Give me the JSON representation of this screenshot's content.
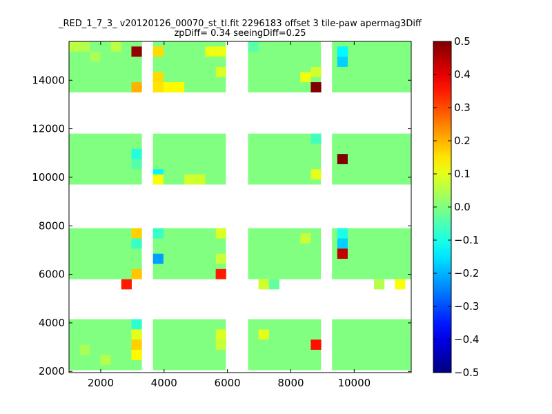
{
  "chart_data": {
    "type": "heatmap",
    "title_line1": "_RED_1_7_3_ v20120126_00070_st_tl.fit 2296183 offset 3 tile-paw apermag3Diff",
    "title_line2": "zpDiff= 0.34 seeingDiff=0.25",
    "xlim": [
      1000,
      11800
    ],
    "ylim": [
      1950,
      15600
    ],
    "x_ticks": [
      2000,
      4000,
      6000,
      8000,
      10000
    ],
    "x_tick_labels": [
      "2000",
      "4000",
      "6000",
      "8000",
      "10000"
    ],
    "y_ticks": [
      2000,
      4000,
      6000,
      8000,
      10000,
      12000,
      14000
    ],
    "y_tick_labels": [
      "2000",
      "4000",
      "6000",
      "8000",
      "10000",
      "12000",
      "14000"
    ],
    "colormap": "jet",
    "color_range": [
      -0.5,
      0.5
    ],
    "colorbar_ticks": [
      0.5,
      0.4,
      0.3,
      0.2,
      0.1,
      0.0,
      -0.1,
      -0.2,
      -0.3,
      -0.4,
      -0.5
    ],
    "colorbar_tick_labels": [
      "0.5",
      "0.4",
      "0.3",
      "0.2",
      "0.1",
      "0.0",
      "−0.1",
      "−0.2",
      "−0.3",
      "−0.4",
      "−0.5"
    ],
    "grid": false,
    "cell_size": [
      330,
      420
    ],
    "detector_columns": [
      {
        "x_start": 1000,
        "x_end": 3300
      },
      {
        "x_start": 3650,
        "x_end": 5950
      },
      {
        "x_start": 6650,
        "x_end": 8950
      },
      {
        "x_start": 9300,
        "x_end": 11800
      }
    ],
    "detector_rows": [
      {
        "y_start": 2050,
        "y_end": 4150
      },
      {
        "y_start": 5800,
        "y_end": 7900
      },
      {
        "y_start": 9700,
        "y_end": 11800
      },
      {
        "y_start": 13500,
        "y_end": 15600
      }
    ],
    "background_value": 0.0,
    "cells": [
      {
        "x": 1165,
        "y": 15390,
        "value": 0.06
      },
      {
        "x": 1495,
        "y": 15390,
        "value": 0.05
      },
      {
        "x": 1825,
        "y": 14970,
        "value": 0.04
      },
      {
        "x": 2485,
        "y": 15390,
        "value": 0.06
      },
      {
        "x": 3135,
        "y": 15180,
        "value": 0.48
      },
      {
        "x": 3135,
        "y": 13710,
        "value": 0.2
      },
      {
        "x": 3815,
        "y": 15180,
        "value": 0.16
      },
      {
        "x": 3815,
        "y": 14130,
        "value": 0.16
      },
      {
        "x": 3815,
        "y": 13710,
        "value": 0.15
      },
      {
        "x": 4145,
        "y": 13710,
        "value": 0.13
      },
      {
        "x": 4475,
        "y": 13710,
        "value": 0.13
      },
      {
        "x": 5465,
        "y": 15180,
        "value": 0.11
      },
      {
        "x": 5795,
        "y": 15180,
        "value": 0.11
      },
      {
        "x": 5795,
        "y": 14340,
        "value": 0.09
      },
      {
        "x": 6815,
        "y": 15390,
        "value": -0.04
      },
      {
        "x": 8465,
        "y": 14130,
        "value": 0.11
      },
      {
        "x": 8795,
        "y": 14340,
        "value": 0.08
      },
      {
        "x": 8795,
        "y": 13710,
        "value": 0.5
      },
      {
        "x": 9630,
        "y": 15180,
        "value": -0.13
      },
      {
        "x": 9630,
        "y": 14760,
        "value": -0.17
      },
      {
        "x": 3135,
        "y": 10960,
        "value": -0.09
      },
      {
        "x": 3135,
        "y": 10540,
        "value": -0.04
      },
      {
        "x": 3815,
        "y": 10120,
        "value": -0.13
      },
      {
        "x": 3815,
        "y": 9910,
        "value": 0.12
      },
      {
        "x": 4805,
        "y": 9910,
        "value": 0.08
      },
      {
        "x": 5135,
        "y": 9910,
        "value": 0.08
      },
      {
        "x": 8795,
        "y": 10120,
        "value": 0.1
      },
      {
        "x": 8795,
        "y": 11590,
        "value": -0.06
      },
      {
        "x": 9630,
        "y": 10750,
        "value": 0.5
      },
      {
        "x": 3135,
        "y": 7690,
        "value": 0.17
      },
      {
        "x": 3135,
        "y": 7270,
        "value": -0.07
      },
      {
        "x": 3135,
        "y": 6010,
        "value": 0.18
      },
      {
        "x": 3815,
        "y": 7690,
        "value": -0.07
      },
      {
        "x": 3815,
        "y": 6640,
        "value": -0.22
      },
      {
        "x": 5795,
        "y": 7690,
        "value": 0.09
      },
      {
        "x": 5795,
        "y": 6640,
        "value": 0.07
      },
      {
        "x": 5795,
        "y": 6010,
        "value": 0.35
      },
      {
        "x": 2815,
        "y": 5590,
        "value": 0.35
      },
      {
        "x": 7145,
        "y": 5590,
        "value": 0.08
      },
      {
        "x": 7475,
        "y": 5590,
        "value": -0.03
      },
      {
        "x": 8465,
        "y": 7480,
        "value": 0.07
      },
      {
        "x": 9630,
        "y": 7690,
        "value": -0.1
      },
      {
        "x": 9630,
        "y": 7270,
        "value": -0.17
      },
      {
        "x": 9630,
        "y": 6850,
        "value": 0.44
      },
      {
        "x": 10790,
        "y": 5590,
        "value": 0.05
      },
      {
        "x": 11450,
        "y": 5590,
        "value": 0.12
      },
      {
        "x": 3135,
        "y": 3940,
        "value": -0.08
      },
      {
        "x": 3135,
        "y": 3520,
        "value": 0.1
      },
      {
        "x": 3135,
        "y": 3100,
        "value": 0.17
      },
      {
        "x": 3135,
        "y": 2680,
        "value": 0.13
      },
      {
        "x": 5795,
        "y": 3520,
        "value": 0.09
      },
      {
        "x": 5795,
        "y": 3100,
        "value": 0.07
      },
      {
        "x": 7145,
        "y": 3520,
        "value": 0.1
      },
      {
        "x": 8795,
        "y": 3100,
        "value": 0.36
      },
      {
        "x": 1495,
        "y": 2890,
        "value": 0.04
      },
      {
        "x": 2155,
        "y": 2470,
        "value": 0.05
      }
    ]
  }
}
